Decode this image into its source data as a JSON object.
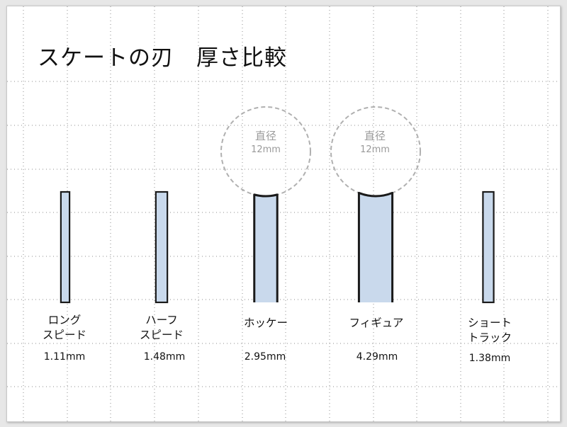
{
  "slide": {
    "title": "スケートの刃　厚さ比較"
  },
  "blades": [
    {
      "name_line1": "ロング",
      "name_line2": "スピード",
      "thickness": "1.11mm",
      "thickness_mm": 1.11,
      "hollow": false
    },
    {
      "name_line1": "ハーフ",
      "name_line2": "スピード",
      "thickness": "1.48mm",
      "thickness_mm": 1.48,
      "hollow": false
    },
    {
      "name_line1": "ホッケー",
      "name_line2": "",
      "thickness": "2.95mm",
      "thickness_mm": 2.95,
      "hollow": true,
      "hollow_label": "直径",
      "hollow_value": "12mm"
    },
    {
      "name_line1": "フィギュア",
      "name_line2": "",
      "thickness": "4.29mm",
      "thickness_mm": 4.29,
      "hollow": true,
      "hollow_label": "直径",
      "hollow_value": "12mm"
    },
    {
      "name_line1": "ショート",
      "name_line2": "トラック",
      "thickness": "1.38mm",
      "thickness_mm": 1.38,
      "hollow": false
    }
  ],
  "colors": {
    "blade_fill": "#c9d9ec",
    "blade_stroke": "#1a1a1a",
    "circle_stroke": "#b0b0b0",
    "grid_dot": "#8c8c8c"
  }
}
